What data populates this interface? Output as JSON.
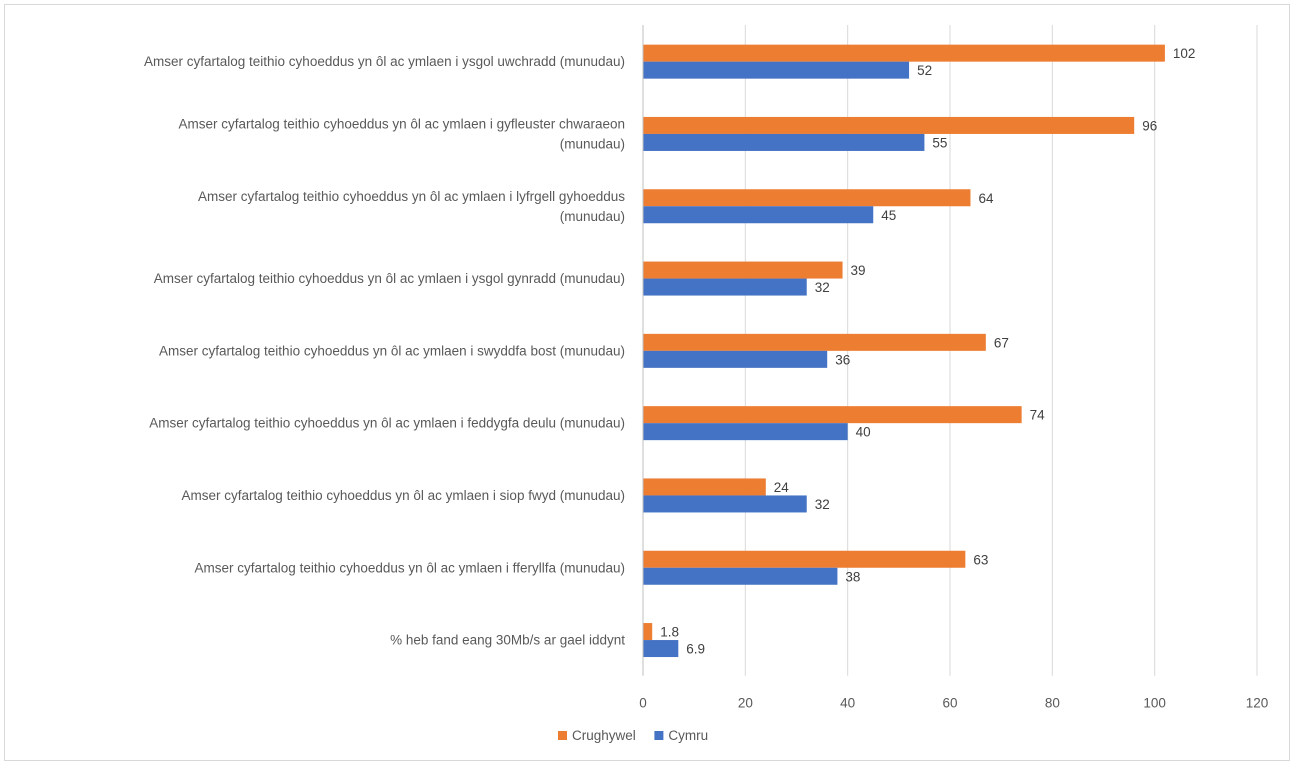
{
  "chart_data": {
    "type": "bar",
    "orientation": "horizontal",
    "categories": [
      "Amser cyfartalog teithio cyhoeddus yn ôl ac ymlaen i ysgol uwchradd (munudau)",
      "Amser cyfartalog teithio cyhoeddus yn ôl ac ymlaen i gyfleuster chwaraeon (munudau)",
      "Amser cyfartalog teithio cyhoeddus yn ôl ac ymlaen i lyfrgell gyhoeddus (munudau)",
      "Amser cyfartalog teithio cyhoeddus yn ôl ac ymlaen i ysgol gynradd (munudau)",
      "Amser cyfartalog teithio cyhoeddus yn ôl ac ymlaen i swyddfa bost (munudau)",
      "Amser cyfartalog teithio cyhoeddus yn ôl ac ymlaen i feddygfa deulu (munudau)",
      "Amser cyfartalog teithio cyhoeddus yn ôl ac ymlaen i siop fwyd (munudau)",
      "Amser cyfartalog teithio cyhoeddus yn ôl ac ymlaen i fferyllfa (munudau)",
      "% heb fand eang 30Mb/s ar gael iddynt"
    ],
    "category_lines": [
      [
        "Amser cyfartalog teithio cyhoeddus yn ôl ac ymlaen i ysgol uwchradd (munudau)"
      ],
      [
        "Amser cyfartalog teithio cyhoeddus yn ôl ac ymlaen i gyfleuster chwaraeon",
        "(munudau)"
      ],
      [
        "Amser cyfartalog teithio cyhoeddus yn ôl ac ymlaen i lyfrgell gyhoeddus",
        "(munudau)"
      ],
      [
        "Amser cyfartalog teithio cyhoeddus yn ôl ac ymlaen i ysgol gynradd (munudau)"
      ],
      [
        "Amser cyfartalog teithio cyhoeddus yn ôl ac ymlaen i swyddfa bost (munudau)"
      ],
      [
        "Amser cyfartalog teithio cyhoeddus yn ôl ac ymlaen i feddygfa deulu (munudau)"
      ],
      [
        "Amser cyfartalog teithio cyhoeddus yn ôl ac ymlaen i siop fwyd (munudau)"
      ],
      [
        "Amser cyfartalog teithio cyhoeddus yn ôl ac ymlaen i fferyllfa (munudau)"
      ],
      [
        "% heb fand eang 30Mb/s ar gael iddynt"
      ]
    ],
    "series": [
      {
        "name": "Crughywel",
        "color": "#ed7d31",
        "values": [
          102,
          96,
          64,
          39,
          67,
          74,
          24,
          63,
          1.8
        ],
        "labels": [
          "102",
          "96",
          "64",
          "39",
          "67",
          "74",
          "24",
          "63",
          "1.8"
        ]
      },
      {
        "name": "Cymru",
        "color": "#4472c4",
        "values": [
          52,
          55,
          45,
          32,
          36,
          40,
          32,
          38,
          6.9
        ],
        "labels": [
          "52",
          "55",
          "45",
          "32",
          "36",
          "40",
          "32",
          "38",
          "6.9"
        ]
      }
    ],
    "xlim": [
      0,
      120
    ],
    "xticks": [
      0,
      20,
      40,
      60,
      80,
      100,
      120
    ],
    "xtick_labels": [
      "0",
      "20",
      "40",
      "60",
      "80",
      "100",
      "120"
    ],
    "grid": true,
    "legend": "bottom",
    "title": "",
    "xlabel": "",
    "ylabel": ""
  }
}
